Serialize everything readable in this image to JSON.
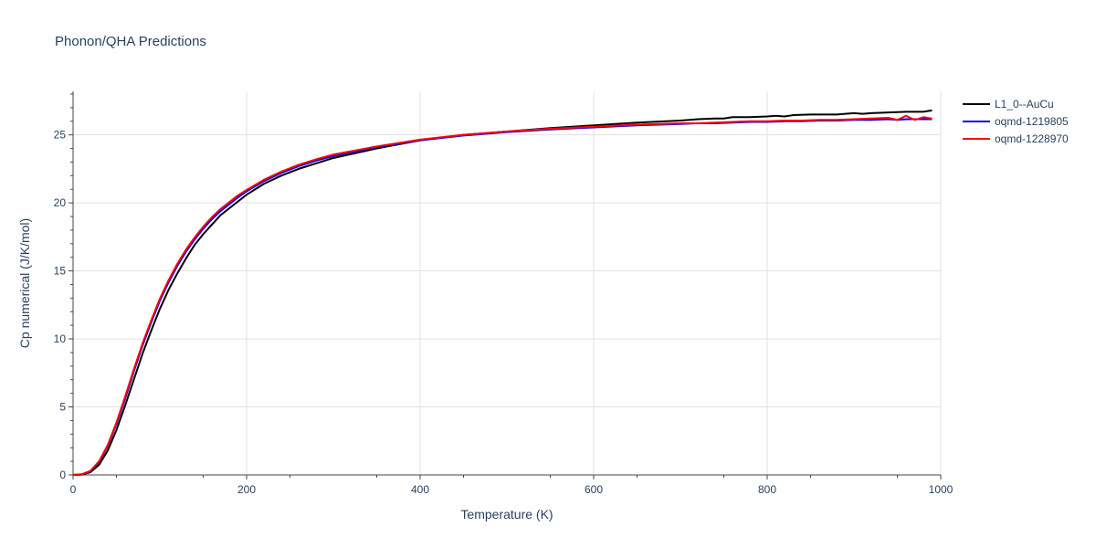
{
  "chart_data": {
    "type": "line",
    "title": "Phonon/QHA Predictions",
    "xlabel": "Temperature (K)",
    "ylabel": "Cp numerical (J/K/mol)",
    "xlim": [
      0,
      1000
    ],
    "ylim": [
      0,
      28.2
    ],
    "xticks": [
      0,
      200,
      400,
      600,
      800,
      1000
    ],
    "yticks": [
      0,
      5,
      10,
      15,
      20,
      25
    ],
    "grid": true,
    "legend_position": "top-right",
    "series": [
      {
        "name": "L1_0--AuCu",
        "color": "#000000",
        "x": [
          0,
          10,
          20,
          30,
          40,
          50,
          60,
          70,
          80,
          90,
          100,
          110,
          120,
          130,
          140,
          150,
          160,
          170,
          180,
          190,
          200,
          220,
          240,
          260,
          280,
          300,
          350,
          400,
          450,
          500,
          550,
          600,
          650,
          700,
          720,
          740,
          750,
          760,
          780,
          800,
          810,
          820,
          830,
          850,
          880,
          900,
          910,
          920,
          940,
          960,
          980,
          990
        ],
        "y": [
          0,
          0.02,
          0.2,
          0.75,
          1.8,
          3.3,
          5.1,
          7.0,
          8.9,
          10.6,
          12.2,
          13.6,
          14.8,
          15.9,
          16.9,
          17.7,
          18.4,
          19.1,
          19.6,
          20.1,
          20.6,
          21.4,
          22.0,
          22.5,
          22.9,
          23.3,
          24.0,
          24.6,
          25.0,
          25.25,
          25.5,
          25.7,
          25.9,
          26.05,
          26.15,
          26.2,
          26.2,
          26.3,
          26.3,
          26.35,
          26.4,
          26.35,
          26.45,
          26.5,
          26.5,
          26.6,
          26.55,
          26.6,
          26.65,
          26.7,
          26.7,
          26.8
        ]
      },
      {
        "name": "oqmd-1219805",
        "color": "#0000ff",
        "x": [
          0,
          10,
          20,
          30,
          40,
          50,
          60,
          70,
          80,
          90,
          100,
          110,
          120,
          130,
          140,
          150,
          160,
          170,
          180,
          190,
          200,
          220,
          240,
          260,
          280,
          300,
          350,
          400,
          450,
          500,
          550,
          600,
          650,
          700,
          720,
          740,
          760,
          780,
          800,
          820,
          840,
          860,
          880,
          900,
          920,
          940,
          950,
          960,
          980,
          990
        ],
        "y": [
          0,
          0.04,
          0.28,
          0.95,
          2.15,
          3.75,
          5.6,
          7.6,
          9.5,
          11.2,
          12.8,
          14.15,
          15.35,
          16.4,
          17.3,
          18.1,
          18.8,
          19.4,
          19.9,
          20.4,
          20.85,
          21.6,
          22.2,
          22.7,
          23.1,
          23.45,
          24.1,
          24.6,
          24.95,
          25.2,
          25.4,
          25.55,
          25.7,
          25.8,
          25.85,
          25.85,
          25.9,
          25.95,
          25.95,
          26.0,
          26.0,
          26.05,
          26.05,
          26.1,
          26.1,
          26.15,
          26.1,
          26.15,
          26.15,
          26.15
        ]
      },
      {
        "name": "oqmd-1228970",
        "color": "#ff0000",
        "x": [
          0,
          10,
          20,
          30,
          40,
          50,
          60,
          70,
          80,
          90,
          100,
          110,
          120,
          130,
          140,
          150,
          160,
          170,
          180,
          190,
          200,
          220,
          240,
          260,
          280,
          300,
          350,
          400,
          450,
          500,
          550,
          600,
          650,
          700,
          720,
          740,
          760,
          780,
          800,
          820,
          840,
          860,
          880,
          900,
          920,
          940,
          950,
          960,
          970,
          980,
          990
        ],
        "y": [
          0,
          0.05,
          0.3,
          1.0,
          2.2,
          3.85,
          5.75,
          7.75,
          9.65,
          11.35,
          12.95,
          14.3,
          15.5,
          16.55,
          17.45,
          18.25,
          18.95,
          19.55,
          20.05,
          20.55,
          20.95,
          21.7,
          22.3,
          22.8,
          23.2,
          23.55,
          24.15,
          24.65,
          25.0,
          25.25,
          25.45,
          25.6,
          25.75,
          25.85,
          25.85,
          25.9,
          25.95,
          26.0,
          26.0,
          26.05,
          26.05,
          26.1,
          26.1,
          26.15,
          26.2,
          26.25,
          26.1,
          26.4,
          26.1,
          26.3,
          26.2
        ]
      }
    ]
  }
}
